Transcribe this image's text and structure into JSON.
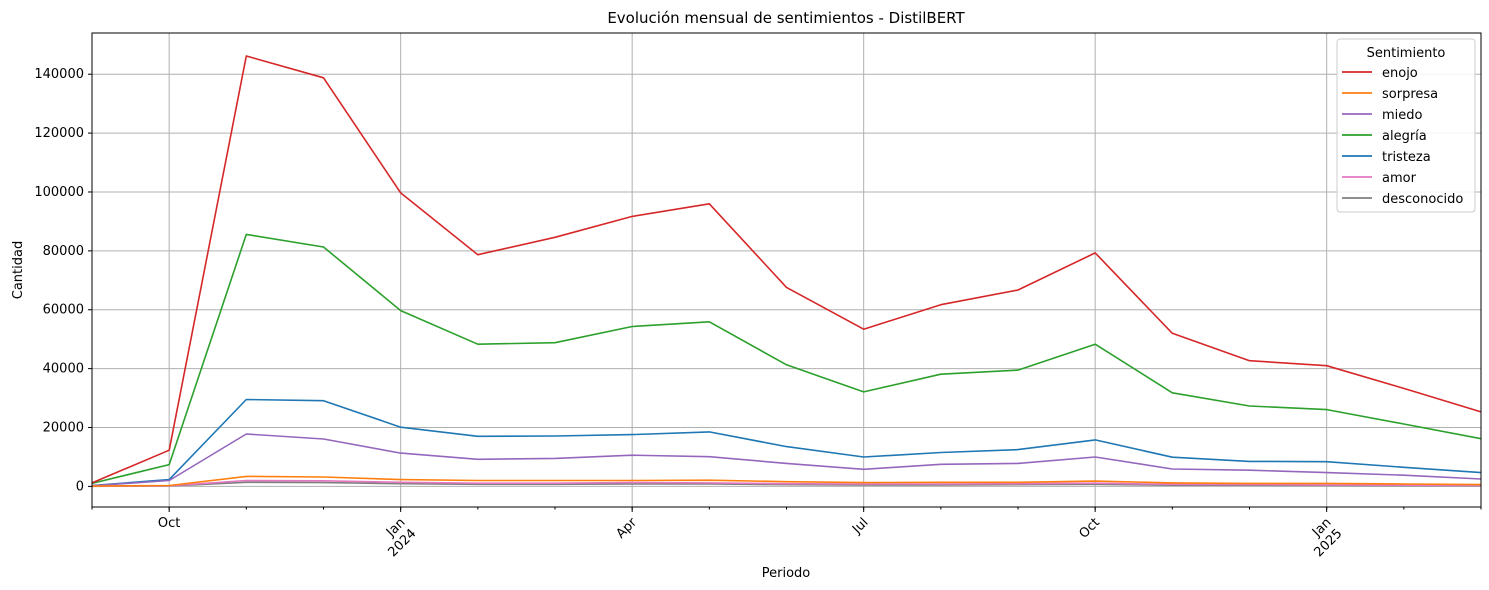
{
  "chart_data": {
    "type": "line",
    "title": "Evolución mensual de sentimientos - DistilBERT",
    "xlabel": "Periodo",
    "ylabel": "Cantidad",
    "x": [
      "2023-09",
      "2023-10",
      "2023-11",
      "2023-12",
      "2024-01",
      "2024-02",
      "2024-03",
      "2024-04",
      "2024-05",
      "2024-06",
      "2024-07",
      "2024-08",
      "2024-09",
      "2024-10",
      "2024-11",
      "2024-12",
      "2025-01",
      "2025-02",
      "2025-03"
    ],
    "xlim": [
      "2023-09",
      "2025-03"
    ],
    "ylim": [
      -7000,
      154000
    ],
    "yticks": [
      0,
      20000,
      40000,
      60000,
      80000,
      100000,
      120000,
      140000
    ],
    "xticks": [
      {
        "at": "2023-10",
        "label": "Oct",
        "sub": ""
      },
      {
        "at": "2024-01",
        "label": "Jan",
        "sub": "2024"
      },
      {
        "at": "2024-04",
        "label": "Apr",
        "sub": ""
      },
      {
        "at": "2024-07",
        "label": "Jul",
        "sub": ""
      },
      {
        "at": "2024-10",
        "label": "Oct",
        "sub": ""
      },
      {
        "at": "2025-01",
        "label": "Jan",
        "sub": "2025"
      }
    ],
    "grid": true,
    "legend": {
      "title": "Sentimiento",
      "position": "top-right"
    },
    "series": [
      {
        "name": "enojo",
        "color": "#d62728",
        "values": [
          1200,
          12300,
          146200,
          138800,
          99700,
          78700,
          84600,
          91700,
          96000,
          67600,
          53400,
          61700,
          66700,
          79300,
          52000,
          42700,
          41000,
          33300,
          25300
        ]
      },
      {
        "name": "sorpresa",
        "color": "#ff7f0e",
        "values": [
          100,
          300,
          3400,
          3200,
          2300,
          2000,
          2000,
          2000,
          2100,
          1600,
          1300,
          1400,
          1400,
          1800,
          1200,
          1000,
          1000,
          800,
          600
        ]
      },
      {
        "name": "miedo",
        "color": "#9467bd",
        "values": [
          200,
          2000,
          17800,
          16100,
          11300,
          9200,
          9500,
          10600,
          10100,
          7800,
          5800,
          7500,
          7800,
          10000,
          5900,
          5500,
          4700,
          3800,
          2500
        ]
      },
      {
        "name": "alegría",
        "color": "#2ca02c",
        "values": [
          1000,
          7400,
          85600,
          81300,
          59700,
          48300,
          48800,
          54300,
          55900,
          41300,
          32100,
          38100,
          39500,
          48300,
          31800,
          27300,
          26100,
          21200,
          16200
        ]
      },
      {
        "name": "tristeza",
        "color": "#1f77b4",
        "values": [
          300,
          2300,
          29500,
          29100,
          20100,
          17000,
          17100,
          17600,
          18500,
          13500,
          10000,
          11500,
          12500,
          15800,
          9900,
          8500,
          8400,
          6500,
          4700
        ]
      },
      {
        "name": "amor",
        "color": "#e377c2",
        "values": [
          50,
          200,
          2000,
          1900,
          1400,
          1100,
          1100,
          1300,
          1200,
          900,
          800,
          800,
          900,
          1100,
          700,
          600,
          500,
          400,
          300
        ]
      },
      {
        "name": "desconocido",
        "color": "#7f7f7f",
        "values": [
          30,
          150,
          1400,
          1300,
          900,
          700,
          700,
          800,
          800,
          600,
          500,
          500,
          600,
          700,
          400,
          400,
          300,
          250,
          200
        ]
      }
    ]
  }
}
